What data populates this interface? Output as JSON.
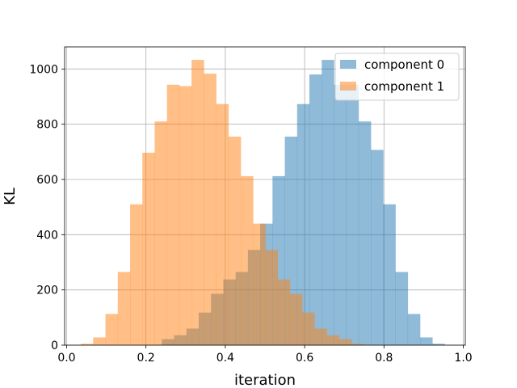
{
  "chart_data": {
    "type": "bar",
    "subtype": "overlapping-histogram",
    "title": "",
    "xlabel": "iteration",
    "ylabel": "KL",
    "xlim": [
      -0.005,
      1.005
    ],
    "ylim": [
      0,
      1080
    ],
    "xticks": [
      "0.0",
      "0.2",
      "0.4",
      "0.6",
      "0.8",
      "1.0"
    ],
    "yticks": [
      "0",
      "200",
      "400",
      "600",
      "800",
      "1000"
    ],
    "grid": true,
    "legend_position": "top-right",
    "series": [
      {
        "name": "component 0",
        "color": "#1f77b4",
        "opacity": 0.5,
        "bins": [
          {
            "x0": 0.24,
            "x1": 0.271,
            "value": 22
          },
          {
            "x0": 0.271,
            "x1": 0.302,
            "value": 36
          },
          {
            "x0": 0.302,
            "x1": 0.333,
            "value": 60
          },
          {
            "x0": 0.333,
            "x1": 0.364,
            "value": 118
          },
          {
            "x0": 0.364,
            "x1": 0.395,
            "value": 186
          },
          {
            "x0": 0.395,
            "x1": 0.426,
            "value": 238
          },
          {
            "x0": 0.426,
            "x1": 0.457,
            "value": 265
          },
          {
            "x0": 0.457,
            "x1": 0.488,
            "value": 345
          },
          {
            "x0": 0.488,
            "x1": 0.519,
            "value": 440
          },
          {
            "x0": 0.519,
            "x1": 0.55,
            "value": 612
          },
          {
            "x0": 0.55,
            "x1": 0.581,
            "value": 755
          },
          {
            "x0": 0.581,
            "x1": 0.612,
            "value": 873
          },
          {
            "x0": 0.612,
            "x1": 0.643,
            "value": 980
          },
          {
            "x0": 0.643,
            "x1": 0.674,
            "value": 1033
          },
          {
            "x0": 0.674,
            "x1": 0.705,
            "value": 943
          },
          {
            "x0": 0.705,
            "x1": 0.736,
            "value": 943
          },
          {
            "x0": 0.736,
            "x1": 0.767,
            "value": 810
          },
          {
            "x0": 0.767,
            "x1": 0.798,
            "value": 707
          },
          {
            "x0": 0.798,
            "x1": 0.829,
            "value": 510
          },
          {
            "x0": 0.829,
            "x1": 0.86,
            "value": 265
          },
          {
            "x0": 0.86,
            "x1": 0.891,
            "value": 113
          },
          {
            "x0": 0.891,
            "x1": 0.922,
            "value": 28
          },
          {
            "x0": 0.922,
            "x1": 0.953,
            "value": 5
          }
        ]
      },
      {
        "name": "component 1",
        "color": "#ff7f0e",
        "opacity": 0.5,
        "bins": [
          {
            "x0": 0.036,
            "x1": 0.067,
            "value": 5
          },
          {
            "x0": 0.067,
            "x1": 0.098,
            "value": 28
          },
          {
            "x0": 0.098,
            "x1": 0.129,
            "value": 113
          },
          {
            "x0": 0.129,
            "x1": 0.16,
            "value": 265
          },
          {
            "x0": 0.16,
            "x1": 0.191,
            "value": 510
          },
          {
            "x0": 0.191,
            "x1": 0.222,
            "value": 697
          },
          {
            "x0": 0.222,
            "x1": 0.253,
            "value": 810
          },
          {
            "x0": 0.253,
            "x1": 0.284,
            "value": 943
          },
          {
            "x0": 0.284,
            "x1": 0.315,
            "value": 938
          },
          {
            "x0": 0.315,
            "x1": 0.346,
            "value": 1033
          },
          {
            "x0": 0.346,
            "x1": 0.377,
            "value": 983
          },
          {
            "x0": 0.377,
            "x1": 0.408,
            "value": 873
          },
          {
            "x0": 0.408,
            "x1": 0.439,
            "value": 755
          },
          {
            "x0": 0.439,
            "x1": 0.47,
            "value": 612
          },
          {
            "x0": 0.47,
            "x1": 0.501,
            "value": 440
          },
          {
            "x0": 0.501,
            "x1": 0.532,
            "value": 345
          },
          {
            "x0": 0.532,
            "x1": 0.563,
            "value": 238
          },
          {
            "x0": 0.563,
            "x1": 0.594,
            "value": 186
          },
          {
            "x0": 0.594,
            "x1": 0.625,
            "value": 118
          },
          {
            "x0": 0.625,
            "x1": 0.656,
            "value": 60
          },
          {
            "x0": 0.656,
            "x1": 0.687,
            "value": 36
          },
          {
            "x0": 0.687,
            "x1": 0.718,
            "value": 22
          },
          {
            "x0": 0.718,
            "x1": 0.749,
            "value": 5
          }
        ]
      }
    ]
  }
}
